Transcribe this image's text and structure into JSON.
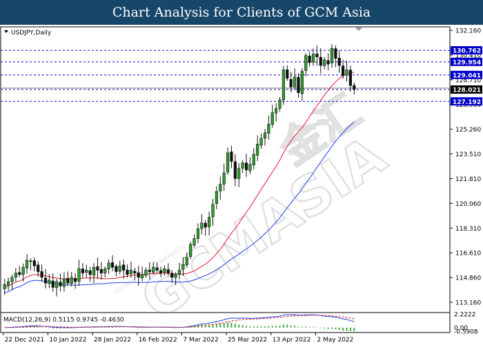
{
  "header": {
    "title": "Chart Analysis for Clients of GCM Asia"
  },
  "watermark": {
    "text": "GCMASIA",
    "chinese": "金汇",
    "sub": "GLOBAL CAPITAL MARKETS"
  },
  "chart_data": {
    "type": "candlestick",
    "symbol_label": "USDJPY,Daily",
    "price_ticks": [
      "132.160",
      "130.410",
      "128.710",
      "126.960",
      "125.260",
      "123.510",
      "121.810",
      "120.060",
      "118.310",
      "116.610",
      "114.860",
      "113.160"
    ],
    "price_range": [
      113.16,
      132.16
    ],
    "levels": [
      {
        "value": 130.762,
        "label": "130.762"
      },
      {
        "value": 129.954,
        "label": "129.954"
      },
      {
        "value": 129.041,
        "label": "129.041"
      },
      {
        "value": 128.021,
        "label": "128.021"
      },
      {
        "value": 127.192,
        "label": "127.192"
      }
    ],
    "current_price": 128.021,
    "date_labels": [
      "22 Dec 2021",
      "10 Jan 2022",
      "28 Jan 2022",
      "16 Feb 2022",
      "7 Mar 2022",
      "25 Mar 2022",
      "13 Apr 2022",
      "2 May 2022"
    ],
    "date_label_bars": [
      0,
      12,
      24,
      36,
      48,
      60,
      72,
      84
    ],
    "closes": [
      114.4,
      114.6,
      114.9,
      115.2,
      115.1,
      115.6,
      116.1,
      116.0,
      115.7,
      115.3,
      114.9,
      114.5,
      114.7,
      114.2,
      114.6,
      114.3,
      114.8,
      114.5,
      114.9,
      114.6,
      115.5,
      115.2,
      115.4,
      115.1,
      115.6,
      115.4,
      115.2,
      115.5,
      115.9,
      115.6,
      115.3,
      115.7,
      115.4,
      115.1,
      115.4,
      115.2,
      114.9,
      115.1,
      115.4,
      115.3,
      115.6,
      115.4,
      115.2,
      115.5,
      115.2,
      114.9,
      115.1,
      115.4,
      115.8,
      116.3,
      117.2,
      117.6,
      118.3,
      118.7,
      118.4,
      119.1,
      120.0,
      120.9,
      121.4,
      122.2,
      123.6,
      123.0,
      121.8,
      122.5,
      122.9,
      122.4,
      122.8,
      123.5,
      124.2,
      124.6,
      125.0,
      125.6,
      126.4,
      126.7,
      127.3,
      129.4,
      128.8,
      128.2,
      128.9,
      127.8,
      129.3,
      130.4,
      129.9,
      130.5,
      130.3,
      129.7,
      130.1,
      129.8,
      130.9,
      130.2,
      129.7,
      129.0,
      129.4,
      128.3,
      128.021
    ],
    "sma_fast_color": "#e0182c",
    "sma_slow_color": "#1c3fe6",
    "sma_fast_period": 20,
    "sma_slow_period": 40,
    "macd": {
      "label": "MACD(12,26,9) 0.5115 0.9745 -0.4630",
      "ticks": [
        "2.2222",
        "0.00",
        "-0.5908"
      ],
      "range": [
        -0.5908,
        2.2222
      ]
    }
  },
  "colors": {
    "bull": "#2e9f2e",
    "bear": "#111111",
    "level": "#0000cc",
    "grid": "#000000"
  }
}
